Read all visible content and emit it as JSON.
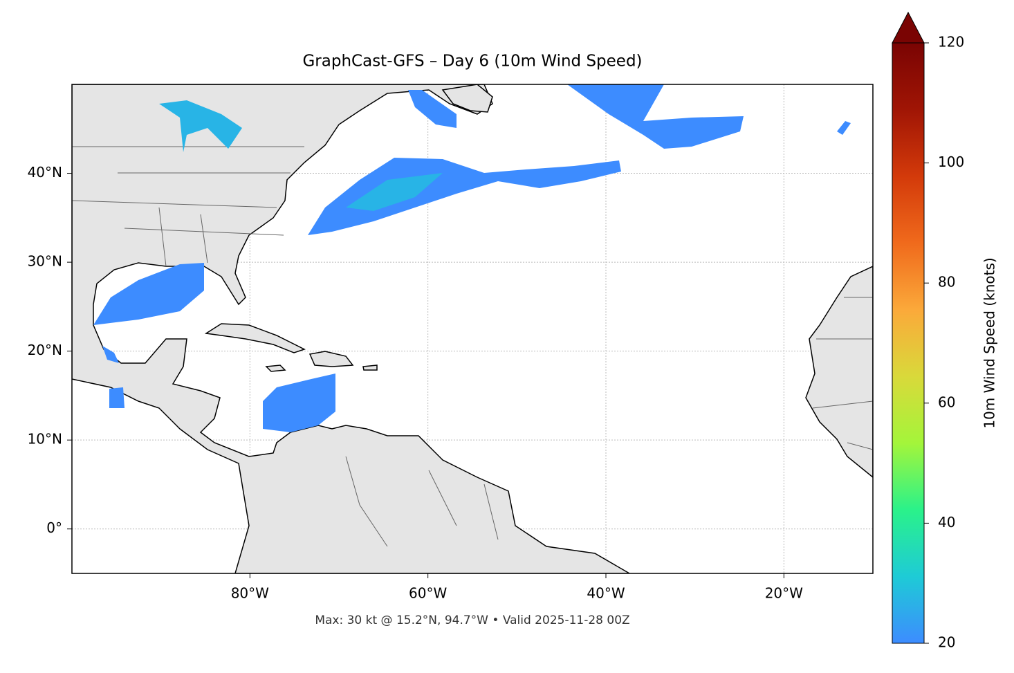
{
  "chart_data": {
    "type": "map",
    "title": "GraphCast-GFS – Day 6 (10m Wind Speed)",
    "footnote": "Max: 30 kt @ 15.2°N, 94.7°W • Valid 2025-11-28 00Z",
    "xlim": [
      -100,
      -10
    ],
    "ylim": [
      -5,
      50
    ],
    "xticks": [
      {
        "value": -80,
        "label": "80°W"
      },
      {
        "value": -60,
        "label": "60°W"
      },
      {
        "value": -40,
        "label": "40°W"
      },
      {
        "value": -20,
        "label": "20°W"
      }
    ],
    "yticks": [
      {
        "value": 0,
        "label": "0°"
      },
      {
        "value": 10,
        "label": "10°N"
      },
      {
        "value": 20,
        "label": "20°N"
      },
      {
        "value": 30,
        "label": "30°N"
      },
      {
        "value": 40,
        "label": "40°N"
      }
    ],
    "grid": true,
    "colorbar": {
      "label": "10m Wind Speed (knots)",
      "lim": [
        20,
        120
      ],
      "ticks": [
        20,
        40,
        60,
        80,
        100,
        120
      ],
      "extend": "max",
      "colors": [
        "#3d8cff",
        "#1ecbd6",
        "#2af28a",
        "#a4f53a",
        "#d9d93a",
        "#fba93a",
        "#f06a1c",
        "#d33a0a",
        "#a01505",
        "#7a0403"
      ]
    }
  }
}
